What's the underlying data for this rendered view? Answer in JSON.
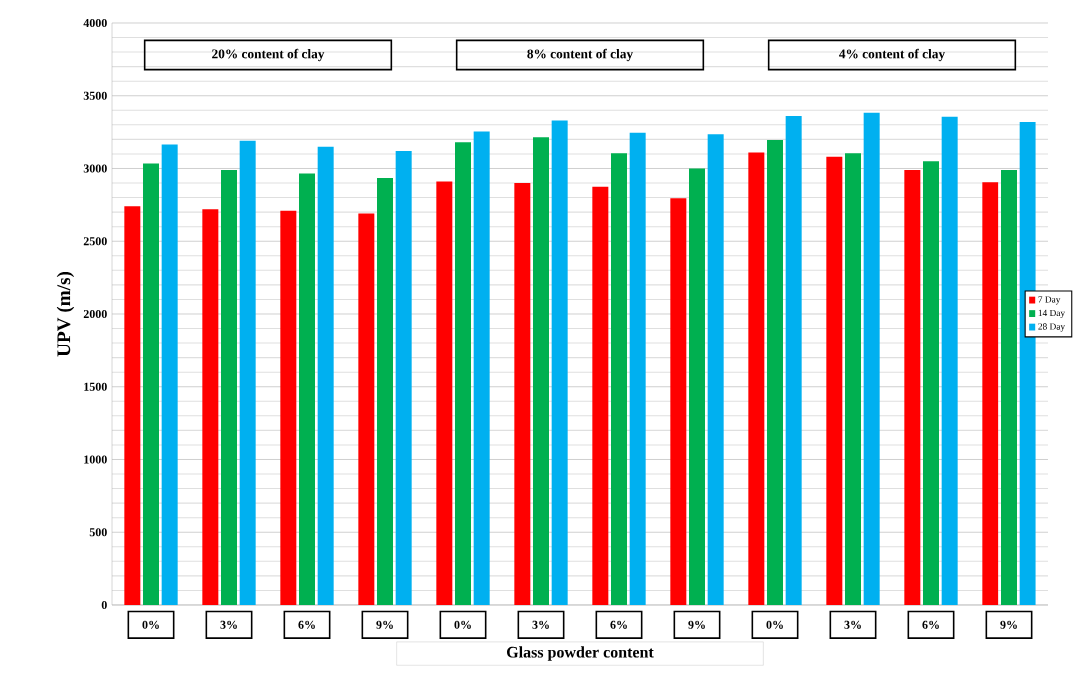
{
  "chart_data": {
    "type": "bar",
    "xlabel": "Glass powder content",
    "ylabel": "UPV (m/s)",
    "categories": [
      "0%",
      "3%",
      "6%",
      "9%",
      "0%",
      "3%",
      "6%",
      "9%",
      "0%",
      "3%",
      "6%",
      "9%"
    ],
    "series": [
      {
        "name": "7 Day",
        "color": "#ff0000",
        "values": [
          2740,
          2720,
          2710,
          2690,
          2910,
          2900,
          2875,
          2795,
          3110,
          3080,
          2990,
          2905
        ]
      },
      {
        "name": "14 Day",
        "color": "#00b050",
        "values": [
          3035,
          2990,
          2965,
          2935,
          3180,
          3215,
          3105,
          3000,
          3195,
          3105,
          3050,
          2990
        ]
      },
      {
        "name": "28 Day",
        "color": "#00b0f0",
        "values": [
          3165,
          3190,
          3150,
          3120,
          3255,
          3330,
          3245,
          3235,
          3360,
          3385,
          3355,
          3320
        ]
      }
    ],
    "annotations": [
      "20% content of clay",
      "8% content of clay",
      "4% content of clay"
    ],
    "ylim": [
      0,
      4000
    ],
    "yticks": [
      0,
      500,
      1000,
      1500,
      2000,
      2500,
      3000,
      3500,
      4000
    ],
    "grid": "y",
    "legend": "right"
  }
}
